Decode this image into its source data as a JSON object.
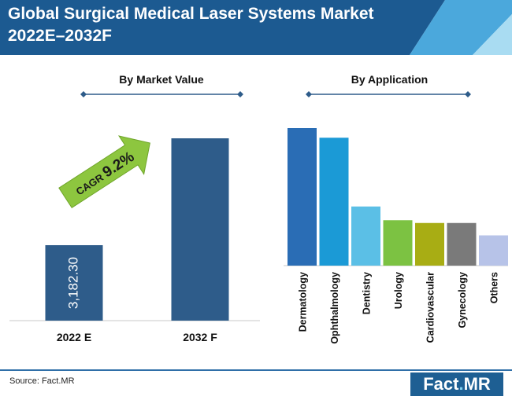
{
  "title_line1": "Global Surgical Medical Laser Systems Market",
  "title_line2": "2022E–2032F",
  "source": "Source: Fact.MR",
  "logo": {
    "part1": "Fact",
    "dot": ".",
    "part2": "MR"
  },
  "chart_data": [
    {
      "type": "bar",
      "title": "By Market Value",
      "categories": [
        "2022 E",
        "2032 F"
      ],
      "values": [
        3182.3,
        7690
      ],
      "data_labels": [
        "3,182.30",
        ""
      ],
      "colors": [
        "#2e5c8a",
        "#2e5c8a"
      ],
      "annotation": {
        "text_prefix": "CAGR ",
        "value": "9.2%"
      }
    },
    {
      "type": "bar",
      "title": "By Application",
      "categories": [
        "Dermatology",
        "Ophthalmology",
        "Dentistry",
        "Urology",
        "Cardiovascular",
        "Gynecology",
        "Others"
      ],
      "values": [
        100,
        93,
        43,
        33,
        31,
        31,
        22
      ],
      "colors": [
        "#2a6db5",
        "#1b9ad6",
        "#5bbfe6",
        "#7cc242",
        "#a8ad14",
        "#7a7a7a",
        "#b7c3e8"
      ]
    }
  ]
}
